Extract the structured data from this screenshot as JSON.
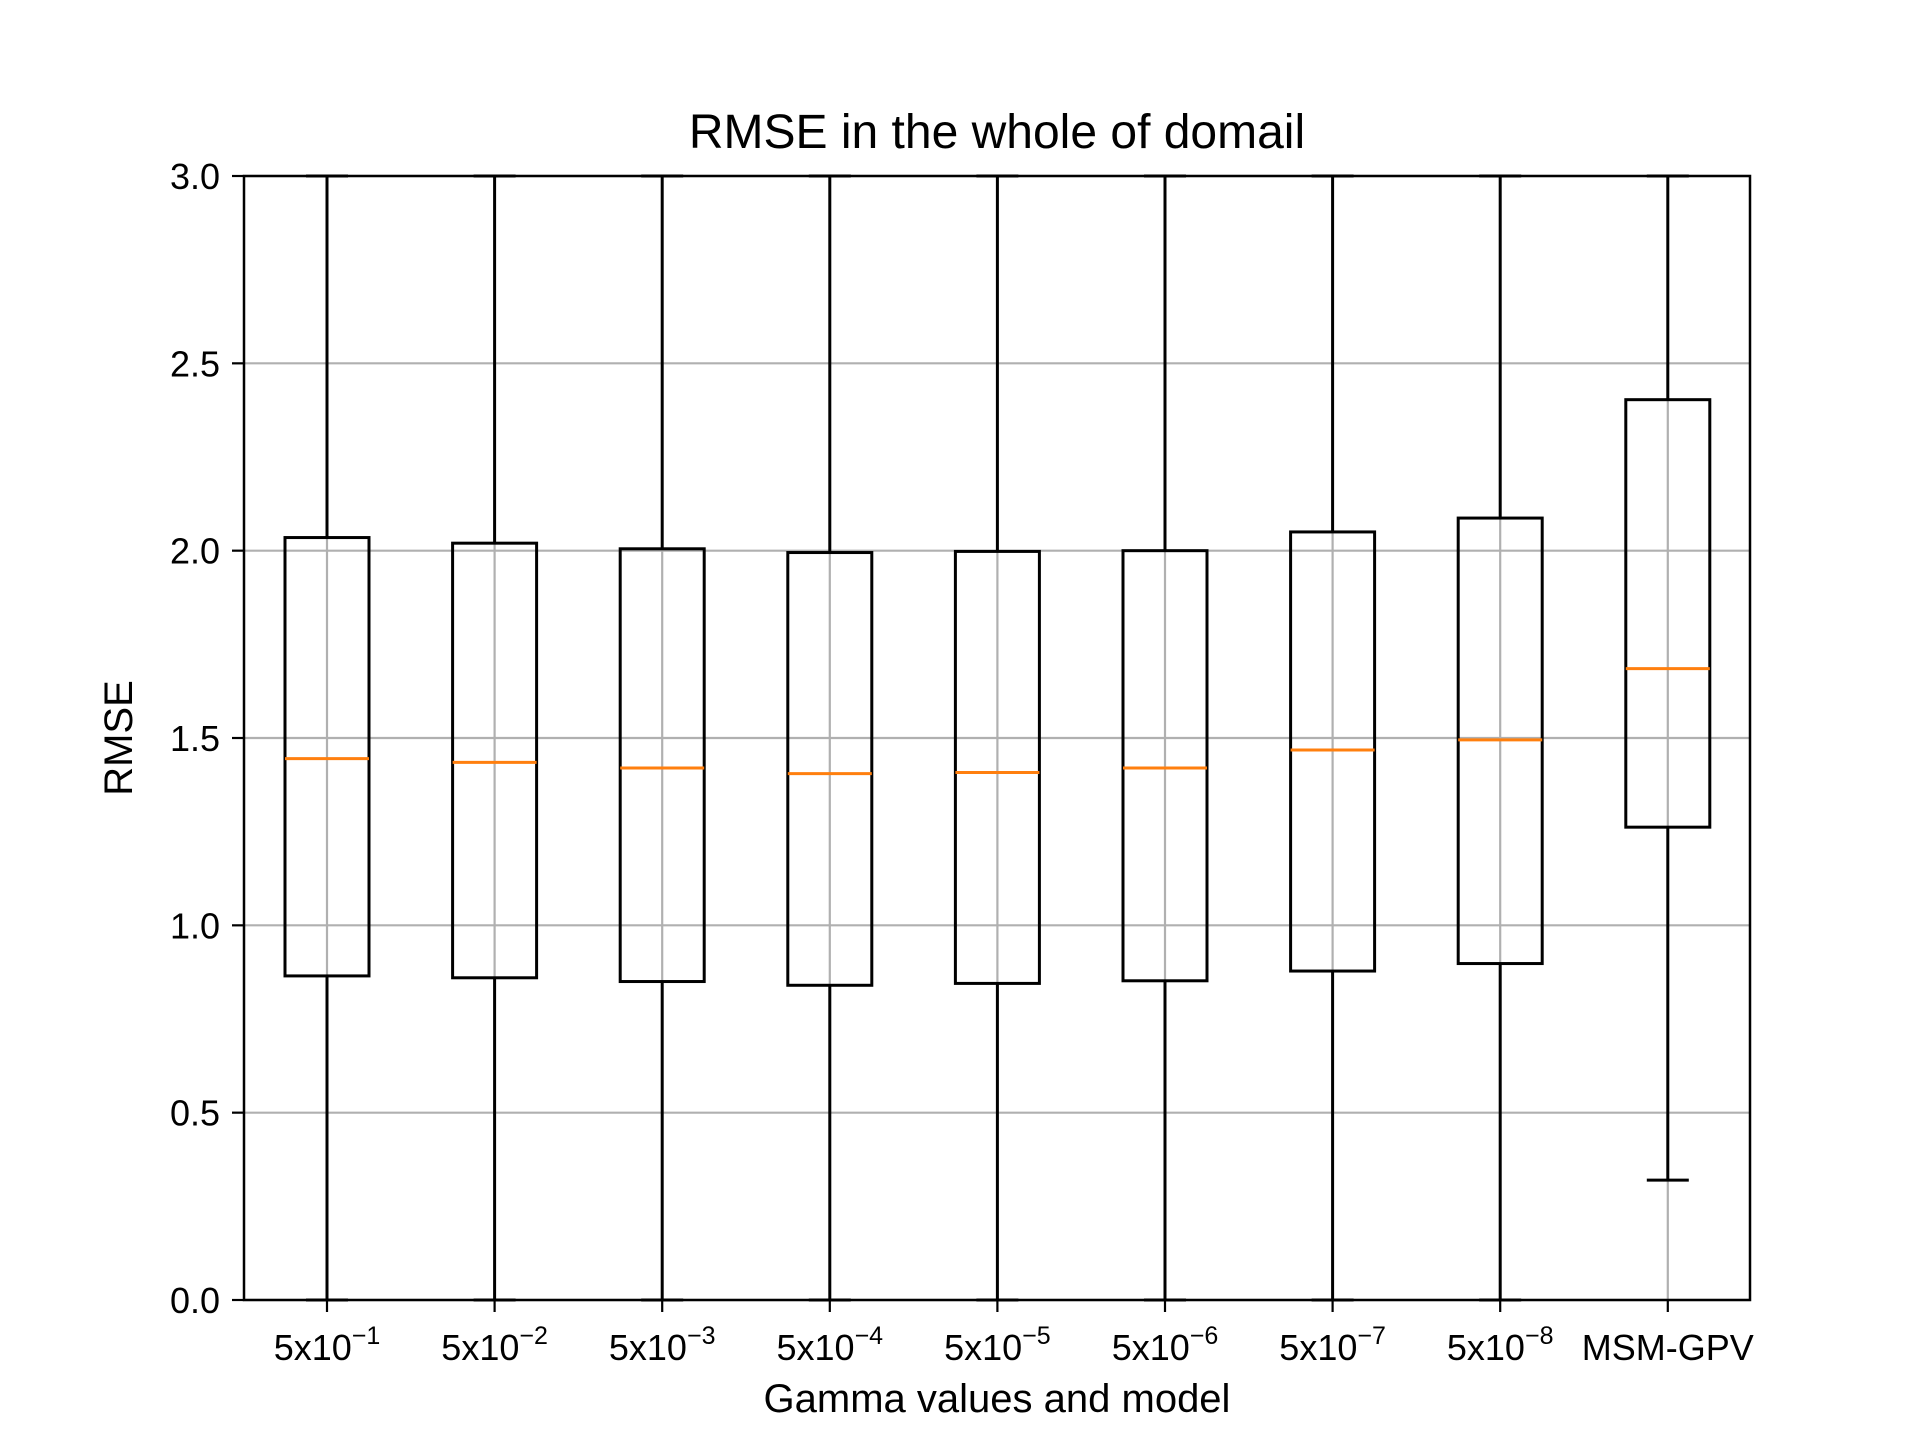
{
  "chart_data": {
    "type": "box",
    "title": "RMSE in the whole of domail",
    "xlabel": "Gamma values and model",
    "ylabel": "RMSE",
    "ylim": [
      0,
      3.0
    ],
    "yticks": [
      "0.0",
      "0.5",
      "1.0",
      "1.5",
      "2.0",
      "2.5",
      "3.0"
    ],
    "grid": true,
    "categories": [
      {
        "base": "5x10",
        "sup": "−1"
      },
      {
        "base": "5x10",
        "sup": "−2"
      },
      {
        "base": "5x10",
        "sup": "−3"
      },
      {
        "base": "5x10",
        "sup": "−4"
      },
      {
        "base": "5x10",
        "sup": "−5"
      },
      {
        "base": "5x10",
        "sup": "−6"
      },
      {
        "base": "5x10",
        "sup": "−7"
      },
      {
        "base": "5x10",
        "sup": "−8"
      },
      {
        "base": "MSM-GPV",
        "sup": ""
      }
    ],
    "boxes": [
      {
        "whisker_low": 0.0,
        "q1": 0.865,
        "median": 1.445,
        "q3": 2.035,
        "whisker_high": 3.0
      },
      {
        "whisker_low": 0.0,
        "q1": 0.86,
        "median": 1.435,
        "q3": 2.02,
        "whisker_high": 3.0
      },
      {
        "whisker_low": 0.0,
        "q1": 0.85,
        "median": 1.42,
        "q3": 2.005,
        "whisker_high": 3.0
      },
      {
        "whisker_low": 0.0,
        "q1": 0.84,
        "median": 1.405,
        "q3": 1.995,
        "whisker_high": 3.0
      },
      {
        "whisker_low": 0.0,
        "q1": 0.845,
        "median": 1.408,
        "q3": 1.998,
        "whisker_high": 3.0
      },
      {
        "whisker_low": 0.0,
        "q1": 0.852,
        "median": 1.42,
        "q3": 2.0,
        "whisker_high": 3.0
      },
      {
        "whisker_low": 0.0,
        "q1": 0.878,
        "median": 1.468,
        "q3": 2.05,
        "whisker_high": 3.0
      },
      {
        "whisker_low": 0.0,
        "q1": 0.898,
        "median": 1.495,
        "q3": 2.087,
        "whisker_high": 3.0
      },
      {
        "whisker_low": 0.32,
        "q1": 1.262,
        "median": 1.685,
        "q3": 2.403,
        "whisker_high": 3.0
      }
    ],
    "colors": {
      "box": "#000000",
      "median": "#ff7f0e",
      "grid": "#b0b0b0"
    }
  }
}
